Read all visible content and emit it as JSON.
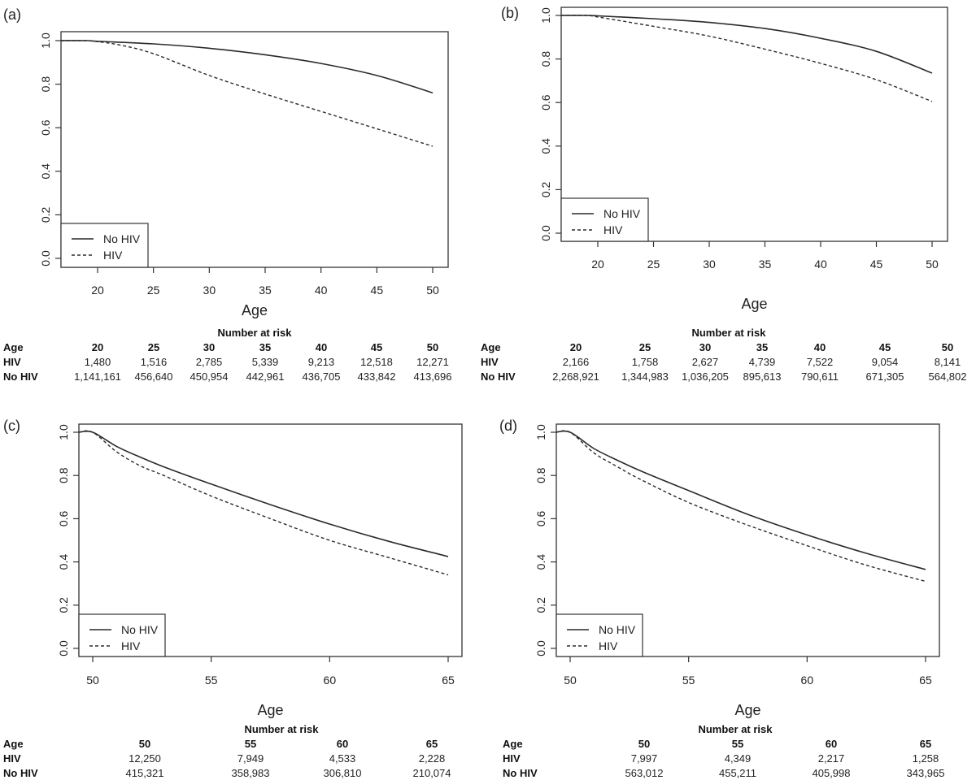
{
  "chart_data": [
    {
      "type": "line",
      "panel_label": "(a)",
      "xlabel": "Age",
      "ylabel": "",
      "xlim": [
        16.7,
        51.3
      ],
      "ylim": [
        -0.04,
        1.04
      ],
      "xticks": [
        20,
        25,
        30,
        35,
        40,
        45,
        50
      ],
      "yticks": [
        0.0,
        0.2,
        0.4,
        0.6,
        0.8,
        1.0
      ],
      "ytick_labels": [
        "0.0",
        "0.2",
        "0.4",
        "0.6",
        "0.8",
        "1.0"
      ],
      "legend": {
        "position": "bottom-left",
        "entries": [
          {
            "label": "No HIV",
            "style": "solid"
          },
          {
            "label": "HIV",
            "style": "dashed"
          }
        ]
      },
      "series": [
        {
          "name": "No HIV",
          "style": "solid",
          "x": [
            16.7,
            19,
            20,
            25,
            30,
            35,
            40,
            45,
            50
          ],
          "y": [
            1.0,
            1.0,
            0.997,
            0.985,
            0.965,
            0.935,
            0.895,
            0.84,
            0.76
          ]
        },
        {
          "name": "HIV",
          "style": "dashed",
          "x": [
            16.7,
            19,
            20,
            22,
            25,
            30,
            35,
            40,
            45,
            50
          ],
          "y": [
            1.0,
            1.0,
            0.995,
            0.98,
            0.94,
            0.84,
            0.755,
            0.675,
            0.595,
            0.515
          ]
        }
      ],
      "risk_table": {
        "title": "Number at risk",
        "row_headers": [
          "Age",
          "HIV",
          "No HIV"
        ],
        "ages": [
          "20",
          "25",
          "30",
          "35",
          "40",
          "45",
          "50"
        ],
        "hiv": [
          "1,480",
          "1,516",
          "2,785",
          "5,339",
          "9,213",
          "12,518",
          "12,271"
        ],
        "no_hiv": [
          "1,141,161",
          "456,640",
          "450,954",
          "442,961",
          "436,705",
          "433,842",
          "413,696"
        ]
      }
    },
    {
      "type": "line",
      "panel_label": "(b)",
      "xlabel": "Age",
      "ylabel": "",
      "xlim": [
        16.7,
        51.3
      ],
      "ylim": [
        -0.04,
        1.04
      ],
      "xticks": [
        20,
        25,
        30,
        35,
        40,
        45,
        50
      ],
      "yticks": [
        0.0,
        0.2,
        0.4,
        0.6,
        0.8,
        1.0
      ],
      "ytick_labels": [
        "0.0",
        "0.2",
        "0.4",
        "0.6",
        "0.8",
        "1.0"
      ],
      "legend": {
        "position": "bottom-left",
        "entries": [
          {
            "label": "No HIV",
            "style": "solid"
          },
          {
            "label": "HIV",
            "style": "dashed"
          }
        ]
      },
      "series": [
        {
          "name": "No HIV",
          "style": "solid",
          "x": [
            16.7,
            19,
            20,
            25,
            30,
            35,
            40,
            45,
            50
          ],
          "y": [
            1.0,
            1.0,
            0.998,
            0.985,
            0.968,
            0.94,
            0.895,
            0.835,
            0.735
          ]
        },
        {
          "name": "HIV",
          "style": "dashed",
          "x": [
            16.7,
            19,
            20,
            25,
            30,
            35,
            40,
            45,
            50
          ],
          "y": [
            1.0,
            1.0,
            0.993,
            0.95,
            0.905,
            0.845,
            0.78,
            0.705,
            0.605
          ]
        }
      ],
      "risk_table": {
        "title": "Number at risk",
        "row_headers": [
          "Age",
          "HIV",
          "No HIV"
        ],
        "ages": [
          "20",
          "25",
          "30",
          "35",
          "40",
          "45",
          "50"
        ],
        "hiv": [
          "2,166",
          "1,758",
          "2,627",
          "4,739",
          "7,522",
          "9,054",
          "8,141"
        ],
        "no_hiv": [
          "2,268,921",
          "1,344,983",
          "1,036,205",
          "895,613",
          "790,611",
          "671,305",
          "564,802"
        ]
      }
    },
    {
      "type": "line",
      "panel_label": "(c)",
      "xlabel": "Age",
      "ylabel": "",
      "xlim": [
        49.4,
        65.6
      ],
      "ylim": [
        -0.04,
        1.04
      ],
      "xticks": [
        50,
        55,
        60,
        65
      ],
      "yticks": [
        0.0,
        0.2,
        0.4,
        0.6,
        0.8,
        1.0
      ],
      "ytick_labels": [
        "0.0",
        "0.2",
        "0.4",
        "0.6",
        "0.8",
        "1.0"
      ],
      "legend": {
        "position": "bottom-left",
        "entries": [
          {
            "label": "No HIV",
            "style": "solid"
          },
          {
            "label": "HIV",
            "style": "dashed"
          }
        ]
      },
      "series": [
        {
          "name": "No HIV",
          "style": "solid",
          "x": [
            49.4,
            50,
            51,
            52,
            53,
            55,
            57.5,
            60,
            62.5,
            65
          ],
          "y": [
            1.0,
            1.0,
            0.935,
            0.885,
            0.84,
            0.76,
            0.665,
            0.575,
            0.495,
            0.425
          ]
        },
        {
          "name": "HIV",
          "style": "dashed",
          "x": [
            49.4,
            50,
            51,
            52,
            53,
            55,
            57.5,
            60,
            62.5,
            65
          ],
          "y": [
            1.0,
            1.0,
            0.91,
            0.845,
            0.8,
            0.705,
            0.6,
            0.5,
            0.42,
            0.34
          ]
        }
      ],
      "risk_table": {
        "title": "Number at risk",
        "row_headers": [
          "Age",
          "HIV",
          "No HIV"
        ],
        "ages": [
          "50",
          "55",
          "60",
          "65"
        ],
        "hiv": [
          "12,250",
          "7,949",
          "4,533",
          "2,228"
        ],
        "no_hiv": [
          "415,321",
          "358,983",
          "306,810",
          "210,074"
        ]
      }
    },
    {
      "type": "line",
      "panel_label": "(d)",
      "xlabel": "Age",
      "ylabel": "",
      "xlim": [
        49.4,
        65.6
      ],
      "ylim": [
        -0.04,
        1.04
      ],
      "xticks": [
        50,
        55,
        60,
        65
      ],
      "yticks": [
        0.0,
        0.2,
        0.4,
        0.6,
        0.8,
        1.0
      ],
      "ytick_labels": [
        "0.0",
        "0.2",
        "0.4",
        "0.6",
        "0.8",
        "1.0"
      ],
      "legend": {
        "position": "bottom-left",
        "entries": [
          {
            "label": "No HIV",
            "style": "solid"
          },
          {
            "label": "HIV",
            "style": "dashed"
          }
        ]
      },
      "series": [
        {
          "name": "No HIV",
          "style": "solid",
          "x": [
            49.4,
            50,
            51,
            52,
            53,
            55,
            57.5,
            60,
            62.5,
            65
          ],
          "y": [
            1.0,
            1.0,
            0.925,
            0.87,
            0.82,
            0.73,
            0.62,
            0.525,
            0.44,
            0.365
          ]
        },
        {
          "name": "HIV",
          "style": "dashed",
          "x": [
            49.4,
            50,
            51,
            52,
            53,
            55,
            57.5,
            60,
            62.5,
            65
          ],
          "y": [
            1.0,
            1.0,
            0.905,
            0.84,
            0.78,
            0.675,
            0.57,
            0.475,
            0.385,
            0.31
          ]
        }
      ],
      "risk_table": {
        "title": "Number at risk",
        "row_headers": [
          "Age",
          "HIV",
          "No HIV"
        ],
        "ages": [
          "50",
          "55",
          "60",
          "65"
        ],
        "hiv": [
          "7,997",
          "4,349",
          "2,217",
          "1,258"
        ],
        "no_hiv": [
          "563,012",
          "455,211",
          "405,998",
          "343,965"
        ]
      }
    }
  ]
}
